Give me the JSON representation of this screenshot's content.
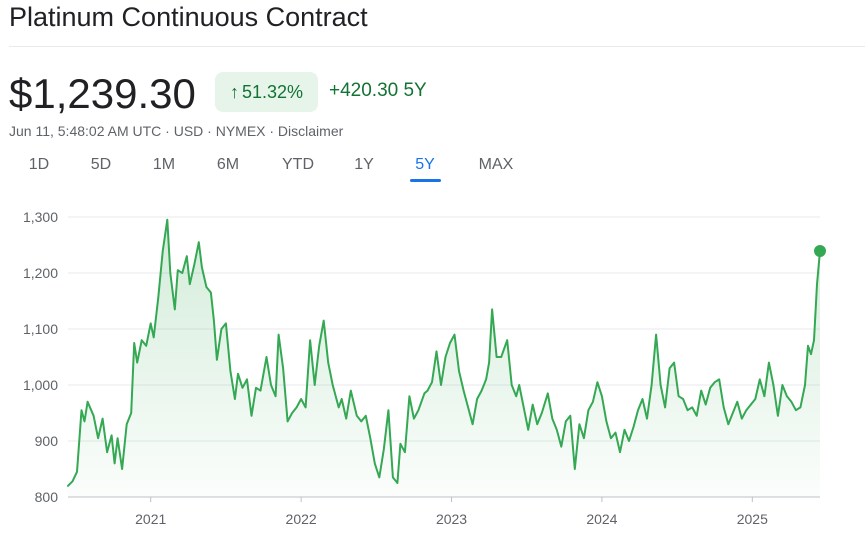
{
  "header": {
    "title": "Platinum Continuous Contract",
    "price": "$1,239.30",
    "change_percent": "51.32%",
    "change_value": "+420.30 5Y",
    "meta": "Jun 11, 5:48:02 AM UTC · USD · NYMEX · Disclaimer"
  },
  "colors": {
    "up_green": "#137333",
    "line": "#34a853",
    "badge_bg": "#e6f4ea",
    "active_tab": "#1a73e8"
  },
  "icons": {
    "change_arrow": "arrow-up-icon"
  },
  "range_tabs": [
    {
      "label": "1D",
      "active": false
    },
    {
      "label": "5D",
      "active": false
    },
    {
      "label": "1M",
      "active": false
    },
    {
      "label": "6M",
      "active": false
    },
    {
      "label": "YTD",
      "active": false
    },
    {
      "label": "1Y",
      "active": false
    },
    {
      "label": "5Y",
      "active": true
    },
    {
      "label": "MAX",
      "active": false
    }
  ],
  "chart_data": {
    "type": "area",
    "title": "",
    "xlabel": "",
    "ylabel": "",
    "ylim": [
      800,
      1300
    ],
    "xlim": [
      2020.45,
      2025.45
    ],
    "y_ticks": [
      800,
      900,
      1000,
      1100,
      1200,
      1300
    ],
    "y_tick_labels": [
      "800",
      "900",
      "1,000",
      "1,100",
      "1,200",
      "1,300"
    ],
    "x_ticks": [
      2021,
      2022,
      2023,
      2024,
      2025
    ],
    "x_tick_labels": [
      "2021",
      "2022",
      "2023",
      "2024",
      "2025"
    ],
    "grid": "horizontal",
    "series": [
      {
        "values": [
          [
            2020.45,
            820
          ],
          [
            2020.48,
            828
          ],
          [
            2020.51,
            845
          ],
          [
            2020.54,
            955
          ],
          [
            2020.56,
            935
          ],
          [
            2020.58,
            970
          ],
          [
            2020.62,
            945
          ],
          [
            2020.65,
            905
          ],
          [
            2020.68,
            940
          ],
          [
            2020.71,
            880
          ],
          [
            2020.74,
            910
          ],
          [
            2020.76,
            860
          ],
          [
            2020.78,
            905
          ],
          [
            2020.81,
            850
          ],
          [
            2020.84,
            930
          ],
          [
            2020.87,
            950
          ],
          [
            2020.89,
            1075
          ],
          [
            2020.91,
            1040
          ],
          [
            2020.94,
            1080
          ],
          [
            2020.97,
            1070
          ],
          [
            2021.0,
            1110
          ],
          [
            2021.02,
            1085
          ],
          [
            2021.05,
            1155
          ],
          [
            2021.08,
            1240
          ],
          [
            2021.11,
            1295
          ],
          [
            2021.13,
            1200
          ],
          [
            2021.16,
            1135
          ],
          [
            2021.18,
            1205
          ],
          [
            2021.21,
            1200
          ],
          [
            2021.24,
            1230
          ],
          [
            2021.26,
            1180
          ],
          [
            2021.29,
            1215
          ],
          [
            2021.32,
            1255
          ],
          [
            2021.34,
            1210
          ],
          [
            2021.37,
            1175
          ],
          [
            2021.4,
            1165
          ],
          [
            2021.42,
            1115
          ],
          [
            2021.44,
            1045
          ],
          [
            2021.47,
            1100
          ],
          [
            2021.5,
            1110
          ],
          [
            2021.53,
            1025
          ],
          [
            2021.56,
            975
          ],
          [
            2021.58,
            1020
          ],
          [
            2021.61,
            995
          ],
          [
            2021.64,
            1010
          ],
          [
            2021.67,
            945
          ],
          [
            2021.7,
            995
          ],
          [
            2021.73,
            990
          ],
          [
            2021.77,
            1050
          ],
          [
            2021.8,
            1000
          ],
          [
            2021.83,
            980
          ],
          [
            2021.85,
            1090
          ],
          [
            2021.88,
            1030
          ],
          [
            2021.91,
            935
          ],
          [
            2021.94,
            950
          ],
          [
            2021.97,
            960
          ],
          [
            2022.0,
            975
          ],
          [
            2022.03,
            960
          ],
          [
            2022.06,
            1080
          ],
          [
            2022.09,
            1000
          ],
          [
            2022.12,
            1070
          ],
          [
            2022.15,
            1115
          ],
          [
            2022.18,
            1040
          ],
          [
            2022.21,
            1000
          ],
          [
            2022.25,
            960
          ],
          [
            2022.27,
            975
          ],
          [
            2022.3,
            940
          ],
          [
            2022.33,
            990
          ],
          [
            2022.37,
            945
          ],
          [
            2022.4,
            935
          ],
          [
            2022.43,
            945
          ],
          [
            2022.46,
            905
          ],
          [
            2022.49,
            860
          ],
          [
            2022.52,
            835
          ],
          [
            2022.55,
            885
          ],
          [
            2022.58,
            955
          ],
          [
            2022.61,
            835
          ],
          [
            2022.64,
            825
          ],
          [
            2022.66,
            895
          ],
          [
            2022.69,
            880
          ],
          [
            2022.72,
            980
          ],
          [
            2022.75,
            940
          ],
          [
            2022.78,
            955
          ],
          [
            2022.82,
            985
          ],
          [
            2022.84,
            990
          ],
          [
            2022.87,
            1005
          ],
          [
            2022.9,
            1060
          ],
          [
            2022.93,
            1000
          ],
          [
            2022.96,
            1050
          ],
          [
            2022.99,
            1075
          ],
          [
            2023.02,
            1090
          ],
          [
            2023.05,
            1025
          ],
          [
            2023.08,
            990
          ],
          [
            2023.11,
            960
          ],
          [
            2023.14,
            930
          ],
          [
            2023.17,
            975
          ],
          [
            2023.2,
            990
          ],
          [
            2023.23,
            1010
          ],
          [
            2023.25,
            1040
          ],
          [
            2023.27,
            1135
          ],
          [
            2023.3,
            1050
          ],
          [
            2023.33,
            1050
          ],
          [
            2023.37,
            1080
          ],
          [
            2023.4,
            1000
          ],
          [
            2023.43,
            980
          ],
          [
            2023.45,
            1000
          ],
          [
            2023.48,
            960
          ],
          [
            2023.51,
            920
          ],
          [
            2023.54,
            965
          ],
          [
            2023.57,
            930
          ],
          [
            2023.6,
            950
          ],
          [
            2023.64,
            985
          ],
          [
            2023.67,
            940
          ],
          [
            2023.7,
            920
          ],
          [
            2023.73,
            890
          ],
          [
            2023.76,
            935
          ],
          [
            2023.79,
            945
          ],
          [
            2023.82,
            850
          ],
          [
            2023.85,
            930
          ],
          [
            2023.88,
            905
          ],
          [
            2023.91,
            955
          ],
          [
            2023.94,
            970
          ],
          [
            2023.97,
            1005
          ],
          [
            2024.0,
            980
          ],
          [
            2024.03,
            935
          ],
          [
            2024.06,
            905
          ],
          [
            2024.09,
            915
          ],
          [
            2024.12,
            880
          ],
          [
            2024.15,
            920
          ],
          [
            2024.18,
            900
          ],
          [
            2024.21,
            925
          ],
          [
            2024.24,
            955
          ],
          [
            2024.27,
            975
          ],
          [
            2024.3,
            940
          ],
          [
            2024.33,
            1000
          ],
          [
            2024.36,
            1090
          ],
          [
            2024.39,
            1000
          ],
          [
            2024.42,
            960
          ],
          [
            2024.45,
            1030
          ],
          [
            2024.48,
            1040
          ],
          [
            2024.51,
            980
          ],
          [
            2024.54,
            975
          ],
          [
            2024.57,
            955
          ],
          [
            2024.6,
            960
          ],
          [
            2024.63,
            945
          ],
          [
            2024.66,
            990
          ],
          [
            2024.69,
            965
          ],
          [
            2024.72,
            995
          ],
          [
            2024.75,
            1005
          ],
          [
            2024.78,
            1010
          ],
          [
            2024.81,
            960
          ],
          [
            2024.84,
            930
          ],
          [
            2024.87,
            950
          ],
          [
            2024.9,
            970
          ],
          [
            2024.93,
            940
          ],
          [
            2024.96,
            955
          ],
          [
            2024.99,
            965
          ],
          [
            2025.02,
            975
          ],
          [
            2025.05,
            1010
          ],
          [
            2025.08,
            980
          ],
          [
            2025.11,
            1040
          ],
          [
            2025.14,
            1000
          ],
          [
            2025.17,
            945
          ],
          [
            2025.2,
            1000
          ],
          [
            2025.23,
            980
          ],
          [
            2025.26,
            970
          ],
          [
            2025.29,
            955
          ],
          [
            2025.32,
            960
          ],
          [
            2025.35,
            1000
          ],
          [
            2025.37,
            1070
          ],
          [
            2025.39,
            1055
          ],
          [
            2025.41,
            1080
          ],
          [
            2025.43,
            1180
          ],
          [
            2025.45,
            1239.3
          ]
        ]
      }
    ],
    "current_point": {
      "x": 2025.45,
      "y": 1239.3
    }
  }
}
